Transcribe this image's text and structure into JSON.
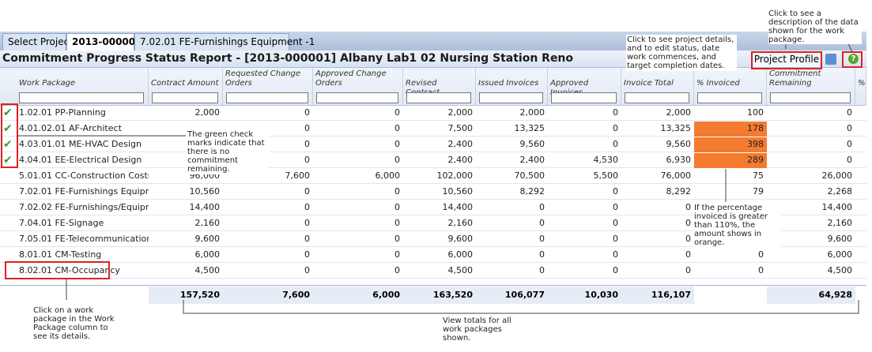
{
  "tabs": [
    "Select Project",
    "2013-000001",
    "7.02.01 FE-Furnishings Equipment -1"
  ],
  "active_tab": "2013-000001",
  "header": {
    "title": "Commitment Progress Status Report - [2013-000001] Albany Lab1 02 Nursing Station Reno",
    "button": "Project Profile"
  },
  "table": {
    "columns": [
      "Work Package",
      "Contract Amount",
      "Requested Change Orders",
      "Approved Change Orders",
      "Revised Contract",
      "Issued Invoices",
      "Approved Invoices",
      "Invoice Total",
      "% Invoiced",
      "Commitment Remaining",
      "%"
    ],
    "rows": [
      [
        "1.02.01 PP-Planning",
        "2,000",
        "0",
        "0",
        "2,000",
        "2,000",
        "0",
        "2,000",
        "100",
        "0"
      ],
      [
        "4.01.02.01 AF-Architect",
        null,
        "0",
        "0",
        "7,500",
        "13,325",
        "0",
        "13,325",
        "178",
        "0"
      ],
      [
        "4.03.01.01 ME-HVAC Design",
        null,
        "0",
        "0",
        "2,400",
        "9,560",
        "0",
        "9,560",
        "398",
        "0"
      ],
      [
        "4.04.01 EE-Electrical Design",
        null,
        "0",
        "0",
        "2,400",
        "2,400",
        "4,530",
        "6,930",
        "289",
        "0"
      ],
      [
        "5.01.01 CC-Construction Costs",
        "96,000",
        "7,600",
        "6,000",
        "102,000",
        "70,500",
        "5,500",
        "76,000",
        "75",
        "26,000"
      ],
      [
        "7.02.01 FE-Furnishings Equipment -1",
        "10,560",
        "0",
        "0",
        "10,560",
        "8,292",
        "0",
        "8,292",
        "79",
        "2,268"
      ],
      [
        "7.02.02 FE-Furnishings/Equipment-2",
        "14,400",
        "0",
        "0",
        "14,400",
        "0",
        "0",
        "0",
        null,
        "14,400"
      ],
      [
        "7.04.01 FE-Signage",
        "2,160",
        "0",
        "0",
        "2,160",
        "0",
        "0",
        "0",
        null,
        "2,160"
      ],
      [
        "7.05.01 FE-Telecommunication",
        "9,600",
        "0",
        "0",
        "9,600",
        "0",
        "0",
        "0",
        null,
        "9,600"
      ],
      [
        "8.01.01 CM-Testing",
        "6,000",
        "0",
        "0",
        "6,000",
        "0",
        "0",
        "0",
        "0",
        "6,000"
      ],
      [
        "8.02.01 CM-Occupancy",
        "4,500",
        "0",
        "0",
        "4,500",
        "0",
        "0",
        "0",
        "0",
        "4,500"
      ]
    ],
    "checked_rows": [
      0,
      1,
      2,
      3
    ],
    "highlighted_rows": [
      1,
      2,
      3
    ],
    "totals": [
      null,
      "157,520",
      "7,600",
      "6,000",
      "163,520",
      "106,077",
      "10,030",
      "116,107",
      null,
      "64,928"
    ]
  },
  "callouts": [
    "Click to see a description of the data shown for the work package.",
    "Click to see project details, and to edit status, date work commences, and target completion dates.",
    "The green check marks indicate that there is no commitment remaining.",
    "If the percentage invoiced is greater than 110%, the amount shows in orange.",
    "Click on a work package in the Work Package column to see its details.",
    "View totals for all work packages shown."
  ]
}
